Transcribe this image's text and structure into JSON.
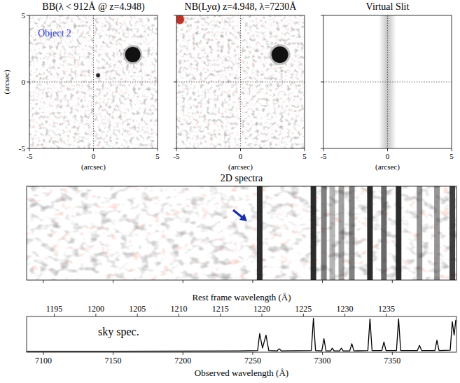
{
  "chart_data": [
    {
      "type": "image",
      "title": "BB(λ < 912Å @ z=4.948)",
      "annotation": "Object 2",
      "x_label": "(arcsec)",
      "y_label": "(arcsec)",
      "xlim": [
        -5,
        5
      ],
      "ylim": [
        -5,
        5
      ],
      "xticks": [
        -5,
        0,
        5
      ],
      "yticks": [
        -5,
        0,
        5
      ],
      "crosshair": [
        0,
        0
      ],
      "sources": [
        {
          "x": 3.07,
          "y": 2.05,
          "radius": 0.6
        },
        {
          "x": 0.36,
          "y": 0.5,
          "radius": 0.15
        }
      ],
      "colors": [
        "#111111",
        "#222222"
      ]
    },
    {
      "type": "image",
      "title": "NB(Lyα) z=4.948, λ=7230Å",
      "x_label": "(arcsec)",
      "xlim": [
        -5,
        5
      ],
      "ylim": [
        -5,
        5
      ],
      "xticks": [
        -5,
        0,
        5
      ],
      "yticks": [
        -5,
        0,
        5
      ],
      "crosshair": [
        0,
        0
      ],
      "sources": [
        {
          "x": 3.07,
          "y": 2.05,
          "radius": 0.65
        },
        {
          "x": -4.75,
          "y": 4.7,
          "radius": 0.35
        }
      ],
      "colors": [
        "#111111",
        "#b8322a"
      ],
      "tick_labels": "x"
    },
    {
      "type": "slit",
      "title": "Virtual Slit",
      "x_label": "(arcsec)",
      "xlim": [
        -5,
        5
      ],
      "ylim": [
        -5,
        5
      ],
      "xticks": [
        -5,
        0,
        5
      ],
      "yticks": [
        -5,
        0,
        5
      ],
      "crosshair": [
        0,
        0
      ],
      "slit": [
        -0.45,
        0.45
      ],
      "tick_labels": "x"
    },
    {
      "type": "spectrum2d",
      "title": "2D spectra",
      "xlim": [
        7088,
        7396
      ],
      "xticks": [
        7100,
        7150,
        7200,
        7250,
        7300,
        7350
      ],
      "x": [
        7255,
        7293.5,
        7301,
        7307,
        7313.5,
        7321,
        7334,
        7344,
        7354.5,
        7369.5,
        7382,
        7393
      ],
      "values": [
        1.0,
        1.0,
        0.6,
        0.35,
        0.45,
        0.6,
        1.0,
        0.7,
        1.0,
        0.5,
        0.5,
        0.9
      ],
      "arrow_x": 7246,
      "tick_labels": false
    },
    {
      "type": "line",
      "annotation": "sky spec.",
      "x_label": "Observed wavelength (Å)",
      "x2_label": "Rest frame wavelength (Å)",
      "xlim": [
        7088,
        7396
      ],
      "xticks": [
        7100,
        7150,
        7200,
        7250,
        7300,
        7350
      ],
      "x2lim": [
        1191.661,
        1243.443
      ],
      "x2ticks": [
        1195,
        1200,
        1205,
        1210,
        1215,
        1220,
        1225,
        1230,
        1235
      ],
      "ylim": [
        0,
        1.05
      ],
      "color": "#000000",
      "tick_labels": "x",
      "x": [
        7088,
        7150,
        7200,
        7240,
        7253.5,
        7255,
        7257,
        7259.5,
        7261.5,
        7267.5,
        7269,
        7270.5,
        7292,
        7293.5,
        7295,
        7299.5,
        7301,
        7302.5,
        7305.8,
        7307,
        7308.3,
        7312.2,
        7313.5,
        7314.8,
        7319.5,
        7321,
        7322.5,
        7332.5,
        7334,
        7335.5,
        7342.5,
        7344,
        7345.5,
        7353,
        7354.5,
        7356,
        7368,
        7369.5,
        7371,
        7380.5,
        7382,
        7383.5,
        7391.5,
        7393,
        7394.3,
        7395.5
      ],
      "values": [
        0.03,
        0.03,
        0.035,
        0.04,
        0.05,
        0.55,
        0.12,
        0.5,
        0.05,
        0.04,
        0.1,
        0.04,
        0.05,
        1.0,
        0.05,
        0.04,
        0.4,
        0.04,
        0.04,
        0.12,
        0.04,
        0.04,
        0.12,
        0.04,
        0.04,
        0.25,
        0.04,
        0.05,
        0.98,
        0.05,
        0.05,
        0.3,
        0.05,
        0.05,
        0.98,
        0.05,
        0.05,
        0.2,
        0.05,
        0.05,
        0.35,
        0.05,
        0.06,
        0.9,
        0.5,
        0.95
      ]
    }
  ]
}
